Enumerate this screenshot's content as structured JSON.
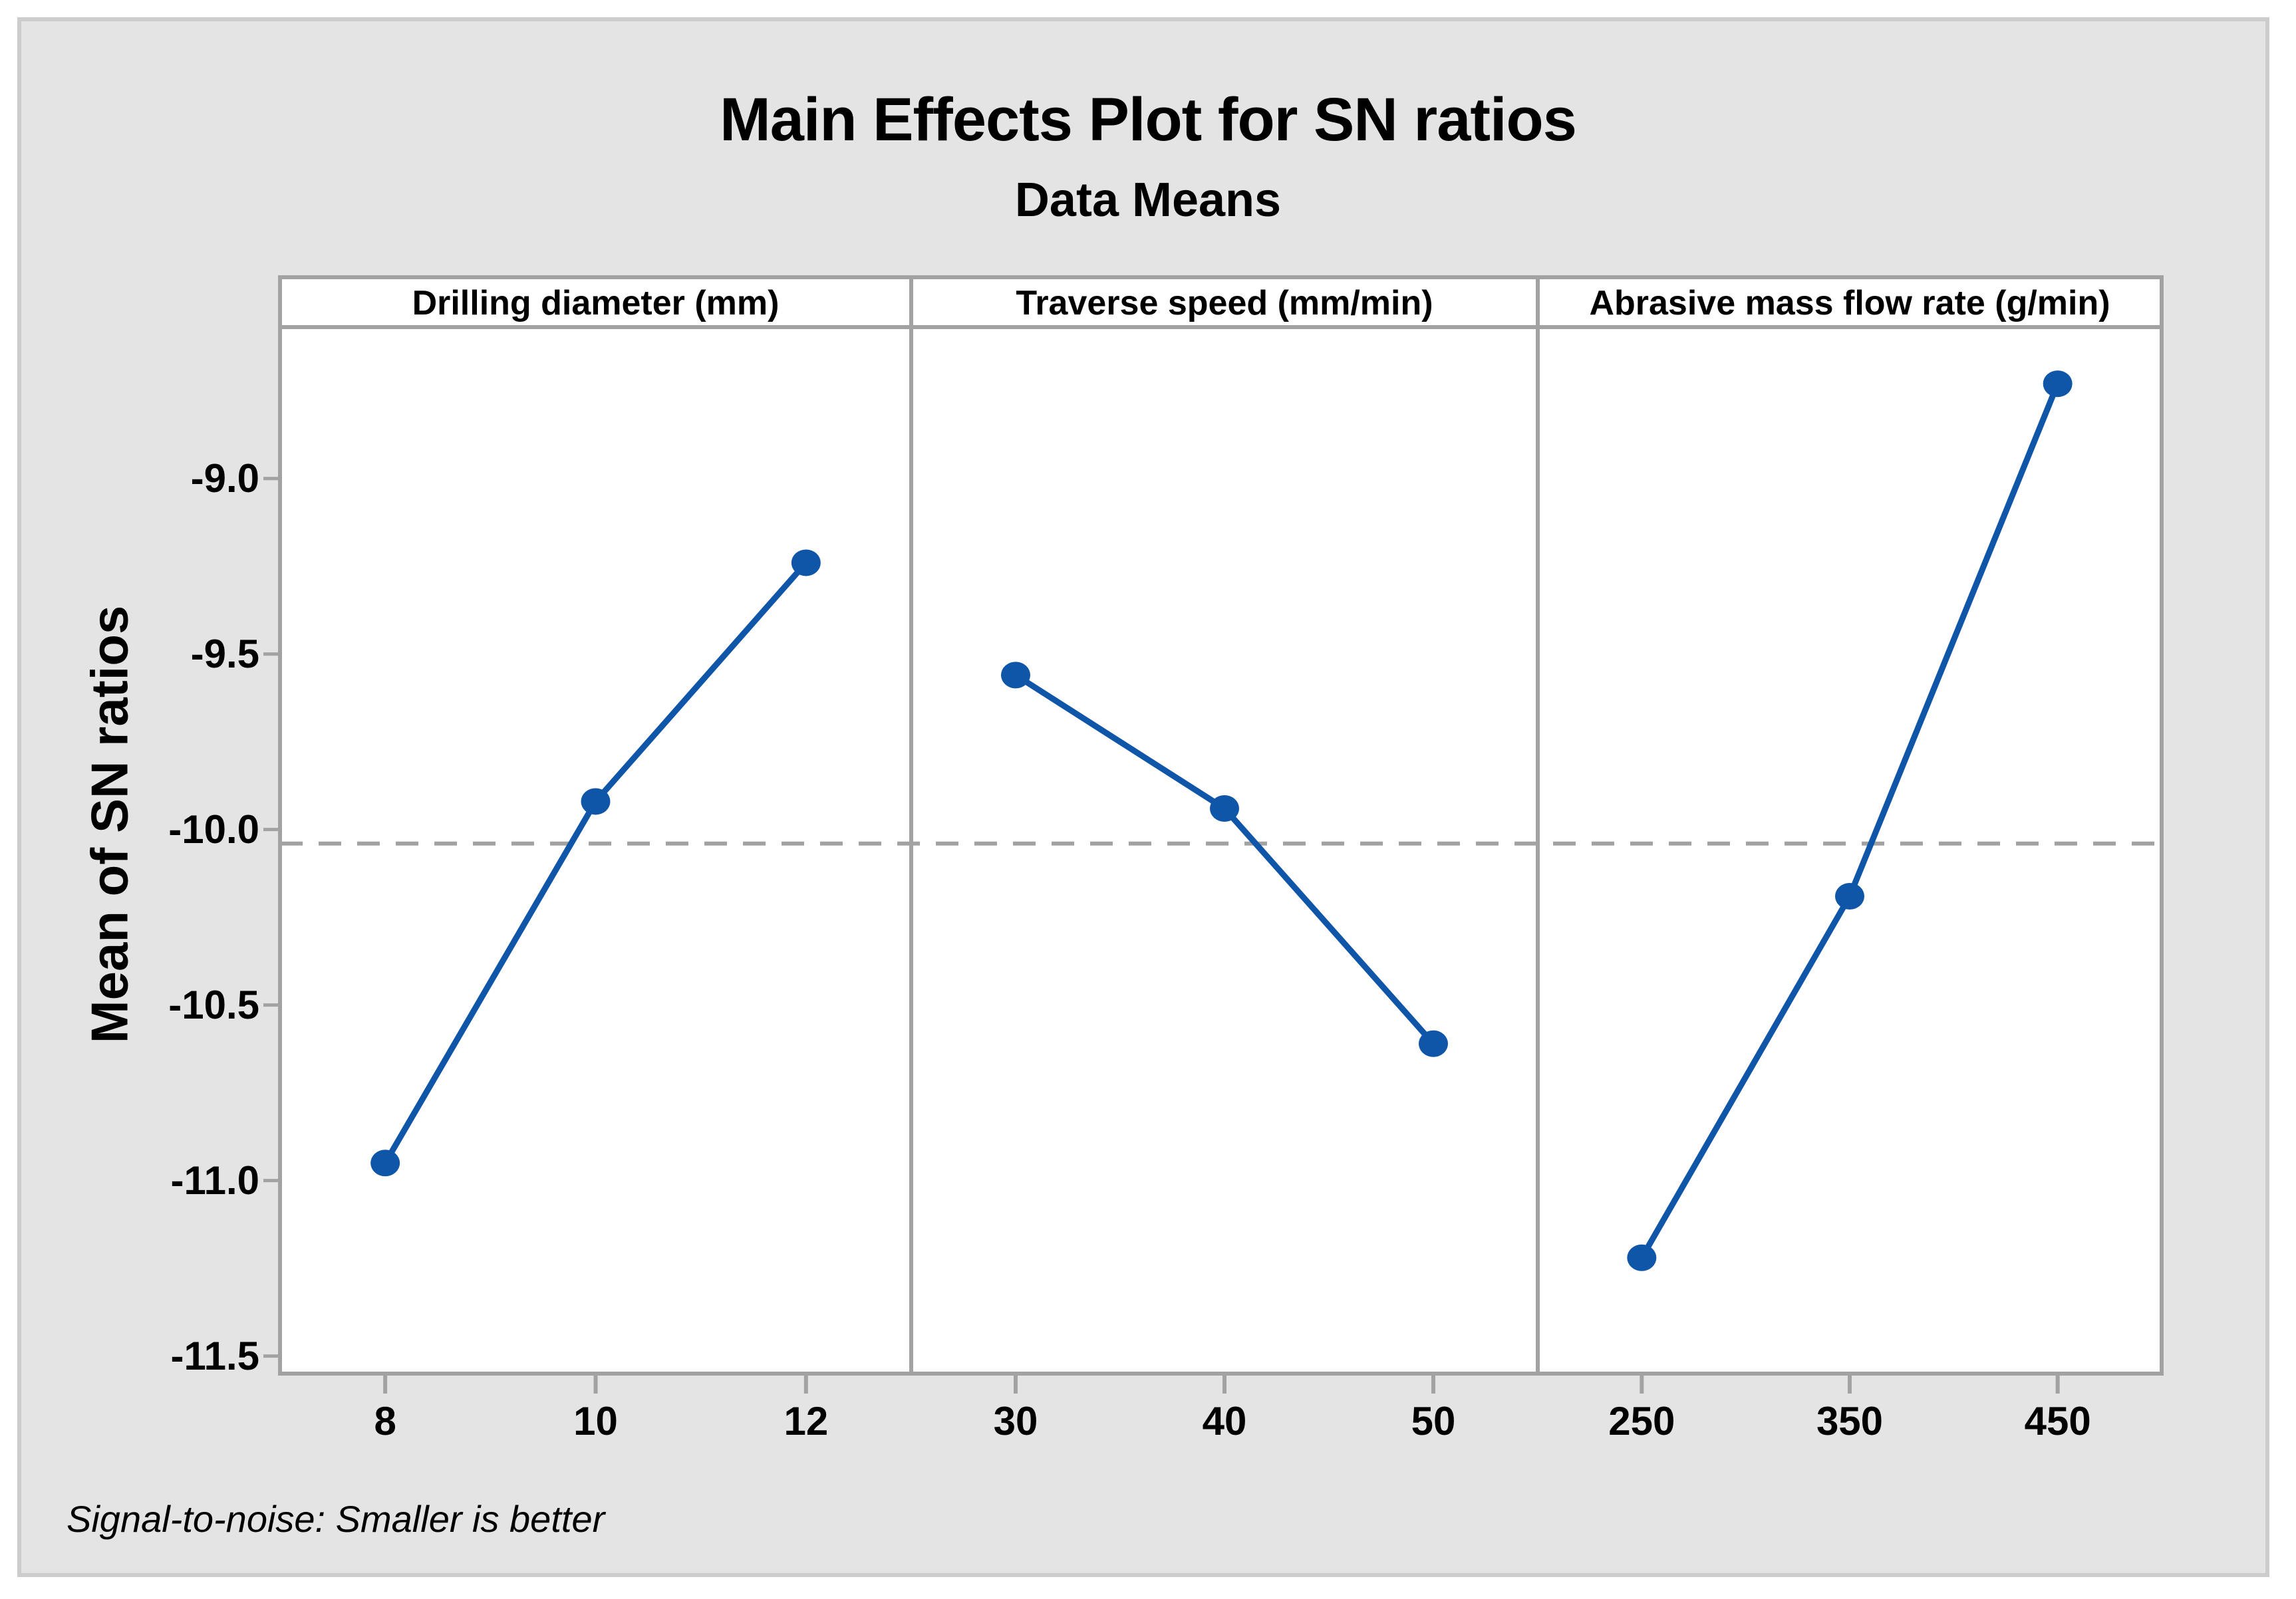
{
  "chart_data": {
    "type": "line",
    "title": "Main Effects Plot for SN ratios",
    "subtitle": "Data Means",
    "ylabel": "Mean of SN ratios",
    "footnote": "Signal-to-noise: Smaller is better",
    "ylim": [
      -11.55,
      -8.58
    ],
    "yticks": [
      -9.0,
      -9.5,
      -10.0,
      -10.5,
      -11.0,
      -11.5
    ],
    "ytick_labels": [
      "-9.0",
      "-9.5",
      "-10.0",
      "-10.5",
      "-11.0",
      "-11.5"
    ],
    "reference_line_mean": -10.04,
    "grid": false,
    "legend": false,
    "panels": [
      {
        "label": "Drilling diameter (mm)",
        "categories": [
          "8",
          "10",
          "12"
        ],
        "values": [
          -10.95,
          -9.92,
          -9.24
        ]
      },
      {
        "label": "Traverse speed (mm/min)",
        "categories": [
          "30",
          "40",
          "50"
        ],
        "values": [
          -9.56,
          -9.94,
          -10.61
        ]
      },
      {
        "label": "Abrasive mass flow rate (g/min)",
        "categories": [
          "250",
          "350",
          "450"
        ],
        "values": [
          -11.22,
          -10.19,
          -8.73
        ]
      }
    ]
  },
  "colors": {
    "canvas_background": "#e4e4e4",
    "plot_background": "#ffffff",
    "frame_gray": "#a2a2a2",
    "board_border": "#cccccc",
    "series_blue": "#0f55a8",
    "reference_dash_gray": "#a2a2a2",
    "text": "#000000"
  }
}
